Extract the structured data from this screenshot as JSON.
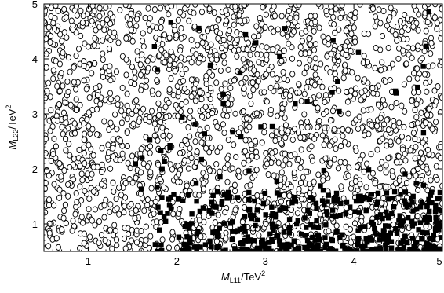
{
  "chart_data": {
    "type": "scatter",
    "title": "",
    "xlabel": {
      "symbol": "M",
      "subscript": "L11",
      "unit": "/TeV",
      "power": "2"
    },
    "ylabel": {
      "symbol": "M",
      "subscript": "L22",
      "unit": "/TeV",
      "power": "2"
    },
    "xlim": [
      0.5,
      5.0
    ],
    "ylim": [
      0.5,
      5.0
    ],
    "x_ticks": [
      1,
      2,
      3,
      4,
      5
    ],
    "y_ticks": [
      1,
      2,
      3,
      4,
      5
    ],
    "grid": false,
    "legend": "none",
    "series": [
      {
        "marker": "open-circle",
        "color": "#000000",
        "region_description": "dense uniform scatter filling the full parameter space",
        "points_sample": [
          [
            0.6,
            4.9
          ],
          [
            1.2,
            4.5
          ],
          [
            2.1,
            4.1
          ],
          [
            2.8,
            3.6
          ],
          [
            3.5,
            4.7
          ],
          [
            4.2,
            3.2
          ],
          [
            4.8,
            2.5
          ],
          [
            0.7,
            2.0
          ],
          [
            1.6,
            1.4
          ],
          [
            2.5,
            2.8
          ],
          [
            3.2,
            2.1
          ],
          [
            1.0,
            0.9
          ],
          [
            0.9,
            3.3
          ],
          [
            1.9,
            2.2
          ],
          [
            2.3,
            3.9
          ]
        ]
      },
      {
        "marker": "filled-square",
        "color": "#000000",
        "region_description": "concentrated at low M_L22 (mostly below ~1.5) and larger M_L11 (above ~1.7), sparse elsewhere",
        "points_sample": [
          [
            1.8,
            0.6
          ],
          [
            2.2,
            0.9
          ],
          [
            2.6,
            0.7
          ],
          [
            3.0,
            1.1
          ],
          [
            3.3,
            0.6
          ],
          [
            3.6,
            1.3
          ],
          [
            4.0,
            0.8
          ],
          [
            4.4,
            1.0
          ],
          [
            4.8,
            0.7
          ],
          [
            4.9,
            1.4
          ],
          [
            3.8,
            0.5
          ],
          [
            4.5,
            1.6
          ],
          [
            2.9,
            1.5
          ],
          [
            4.2,
            2.2
          ],
          [
            3.6,
            3.5
          ],
          [
            2.4,
            2.8
          ],
          [
            2.3,
            4.3
          ],
          [
            4.3,
            4.5
          ],
          [
            4.9,
            4.8
          ],
          [
            4.6,
            3.0
          ]
        ]
      }
    ]
  }
}
